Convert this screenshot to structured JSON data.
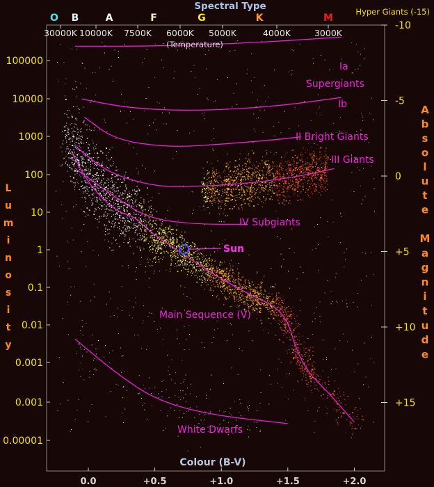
{
  "chart_data": {
    "type": "scatter",
    "title": "Spectral Type",
    "xlabel": "Colour (B-V)",
    "ylabel_left": "Luminosity",
    "ylabel_right": "Absolute Magnitude",
    "x_scale_note": "(Temperature)",
    "corner_label": "Hyper Giants (-15)",
    "spectral_types": [
      {
        "label": "O",
        "color": "#5ee0e8"
      },
      {
        "label": "B",
        "color": "#dff6ff"
      },
      {
        "label": "A",
        "color": "#ffffff"
      },
      {
        "label": "F",
        "color": "#fff7c0"
      },
      {
        "label": "G",
        "color": "#ffee00"
      },
      {
        "label": "K",
        "color": "#ff9a1e"
      },
      {
        "label": "M",
        "color": "#e82020"
      }
    ],
    "temperature_ticks": [
      "30000K",
      "10000K",
      "7500K",
      "6000K",
      "5000K",
      "4000K",
      "3000K"
    ],
    "x_ticks": [
      {
        "value": 0.0,
        "label": "0.0"
      },
      {
        "value": 0.5,
        "label": "+0.5"
      },
      {
        "value": 1.0,
        "label": "+1.0"
      },
      {
        "value": 1.5,
        "label": "+1.5"
      },
      {
        "value": 2.0,
        "label": "+2.0"
      }
    ],
    "xlim": [
      -0.3,
      2.25
    ],
    "luminosity_ticks": [
      "100000",
      "10000",
      "1000",
      "100",
      "10",
      "1",
      "0.1",
      "0.01",
      "0.001",
      "0.001",
      "0.00001"
    ],
    "magnitude_ticks": [
      {
        "value": -10,
        "label": "-10"
      },
      {
        "value": -5,
        "label": "-5"
      },
      {
        "value": 0,
        "label": "0"
      },
      {
        "value": 5,
        "label": "+5"
      },
      {
        "value": 10,
        "label": "+10"
      },
      {
        "value": 15,
        "label": "+15"
      }
    ],
    "magnitude_range": [
      -10,
      18
    ],
    "sequences": [
      {
        "label": "Ia",
        "curve": [
          [
            -0.1,
            -8.6
          ],
          [
            0.5,
            -8.6
          ],
          [
            1.2,
            -8.8
          ],
          [
            1.9,
            -9.2
          ]
        ]
      },
      {
        "label": "Supergiants",
        "curve": []
      },
      {
        "label": "Ib",
        "curve": [
          [
            -0.05,
            -5.1
          ],
          [
            0.3,
            -4.5
          ],
          [
            0.8,
            -4.3
          ],
          [
            1.4,
            -4.6
          ],
          [
            1.9,
            -5.2
          ]
        ]
      },
      {
        "label": "II Bright Giants",
        "curve": [
          [
            -0.03,
            -3.9
          ],
          [
            0.2,
            -2.4
          ],
          [
            0.6,
            -1.9
          ],
          [
            1.0,
            -2.1
          ],
          [
            1.4,
            -2.4
          ],
          [
            1.6,
            -2.6
          ]
        ]
      },
      {
        "label": "III Giants",
        "curve": [
          [
            -0.1,
            -2.0
          ],
          [
            0.15,
            -0.2
          ],
          [
            0.5,
            0.7
          ],
          [
            0.8,
            0.7
          ],
          [
            1.2,
            0.5
          ],
          [
            1.6,
            0.0
          ],
          [
            1.85,
            -0.5
          ]
        ]
      },
      {
        "label": "IV Subgiants",
        "curve": [
          [
            -0.1,
            -0.5
          ],
          [
            0.2,
            1.4
          ],
          [
            0.45,
            2.8
          ],
          [
            0.8,
            3.2
          ],
          [
            1.2,
            3.2
          ]
        ]
      },
      {
        "label": "Sun",
        "curve": []
      },
      {
        "label": "Main Sequence (V)",
        "curve": [
          [
            -0.12,
            -1.5
          ],
          [
            0.0,
            0.5
          ],
          [
            0.2,
            2.3
          ],
          [
            0.35,
            2.7
          ],
          [
            0.45,
            3.6
          ],
          [
            0.65,
            4.8
          ],
          [
            0.9,
            6.3
          ],
          [
            1.2,
            7.8
          ],
          [
            1.4,
            8.6
          ],
          [
            1.5,
            9.6
          ],
          [
            1.56,
            11.4
          ],
          [
            1.65,
            13.0
          ],
          [
            1.8,
            14.3
          ],
          [
            2.0,
            16.3
          ]
        ]
      },
      {
        "label": "White Dwarfs",
        "curve": [
          [
            -0.1,
            10.8
          ],
          [
            0.2,
            13.0
          ],
          [
            0.5,
            14.8
          ],
          [
            0.9,
            15.8
          ],
          [
            1.5,
            16.4
          ]
        ]
      }
    ],
    "sun_point": {
      "x": 0.72,
      "y": 4.85
    },
    "grid": false,
    "legend": "none"
  }
}
